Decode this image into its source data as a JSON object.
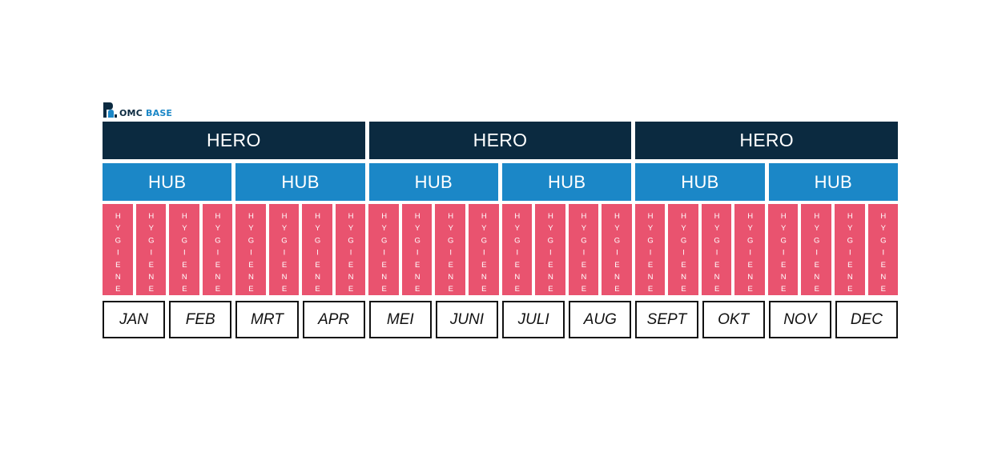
{
  "logo": {
    "brand_part1": "OMC",
    "brand_part2": "BASE",
    "icon": "omc-logo-mark-icon"
  },
  "colors": {
    "hero": "#0b2a40",
    "hub": "#1b87c7",
    "hygiene": "#e9536f",
    "month_border": "#111111"
  },
  "hero": [
    {
      "label": "HERO"
    },
    {
      "label": "HERO"
    },
    {
      "label": "HERO"
    }
  ],
  "hub": [
    {
      "label": "HUB"
    },
    {
      "label": "HUB"
    },
    {
      "label": "HUB"
    },
    {
      "label": "HUB"
    },
    {
      "label": "HUB"
    },
    {
      "label": "HUB"
    }
  ],
  "hygiene": {
    "label": "HYGIENE",
    "count": 24
  },
  "months": [
    {
      "label": "JAN"
    },
    {
      "label": "FEB"
    },
    {
      "label": "MRT"
    },
    {
      "label": "APR"
    },
    {
      "label": "MEI"
    },
    {
      "label": "JUNI"
    },
    {
      "label": "JULI"
    },
    {
      "label": "AUG"
    },
    {
      "label": "SEPT"
    },
    {
      "label": "OKT"
    },
    {
      "label": "NOV"
    },
    {
      "label": "DEC"
    }
  ]
}
